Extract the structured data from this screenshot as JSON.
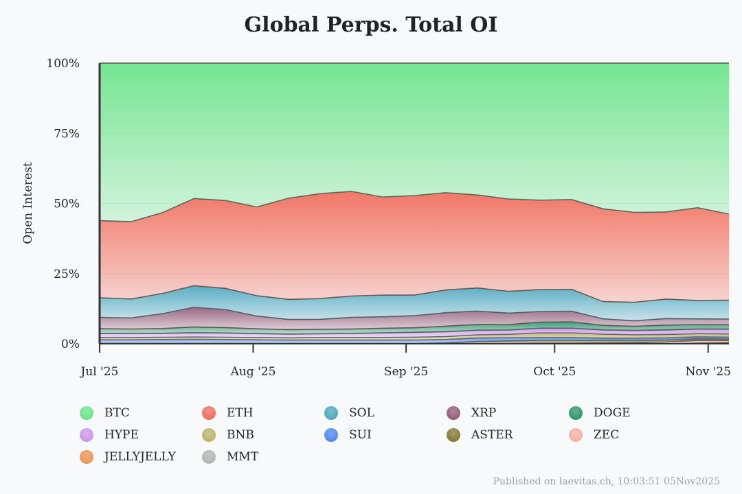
{
  "chart_data": {
    "type": "area",
    "stacked": true,
    "normalized": true,
    "title": "Global Perps. Total OI",
    "ylabel": "Open Interest",
    "xlabel": "",
    "ylim": [
      0,
      100
    ],
    "yticks": [
      "0%",
      "25%",
      "50%",
      "75%",
      "100%"
    ],
    "xticks": [
      "Jul '25",
      "Aug '25",
      "Sep '25",
      "Oct '25",
      "Nov '25"
    ],
    "x": [
      "Jul 1",
      "Jul 8",
      "Jul 15",
      "Jul 22",
      "Jul 29",
      "Aug 5",
      "Aug 12",
      "Aug 19",
      "Aug 26",
      "Sep 2",
      "Sep 9",
      "Sep 16",
      "Sep 23",
      "Sep 30",
      "Oct 7",
      "Oct 10",
      "Oct 11",
      "Oct 18",
      "Oct 25",
      "Nov 1",
      "Nov 5"
    ],
    "series": [
      {
        "name": "BTC",
        "color": "#5ee27f",
        "values": [
          55.4,
          56.0,
          53.1,
          47.8,
          48.6,
          50.9,
          47.8,
          46.0,
          45.1,
          46.7,
          46.3,
          45.0,
          45.6,
          47.4,
          47.6,
          47.4,
          51.5,
          52.8,
          52.6,
          51.1,
          53.8
        ]
      },
      {
        "name": "ETH",
        "color": "#f0604c",
        "values": [
          27.1,
          27.3,
          28.7,
          30.8,
          31.1,
          31.4,
          35.8,
          37.0,
          36.8,
          34.2,
          34.8,
          33.8,
          32.2,
          32.2,
          31.1,
          31.2,
          32.8,
          31.8,
          30.8,
          32.8,
          30.7
        ]
      },
      {
        "name": "SOL",
        "color": "#3da0b8",
        "values": [
          6.9,
          6.7,
          7.2,
          7.6,
          7.5,
          7.2,
          7.1,
          7.3,
          7.5,
          7.6,
          7.2,
          7.9,
          8.0,
          7.6,
          7.6,
          7.6,
          6.1,
          6.6,
          6.9,
          6.5,
          6.7
        ]
      },
      {
        "name": "XRP",
        "color": "#8a4e6c",
        "values": [
          4.0,
          3.9,
          5.3,
          7.0,
          6.4,
          4.5,
          3.6,
          3.5,
          4.1,
          4.0,
          4.2,
          4.7,
          4.6,
          4.0,
          3.7,
          3.7,
          2.3,
          1.9,
          2.3,
          2.0,
          2.0
        ]
      },
      {
        "name": "DOGE",
        "color": "#1e8b5f",
        "values": [
          1.7,
          1.6,
          1.7,
          2.0,
          1.9,
          1.7,
          1.6,
          1.6,
          1.6,
          1.6,
          1.6,
          1.9,
          2.0,
          1.9,
          2.1,
          2.2,
          1.6,
          1.5,
          1.7,
          1.6,
          1.6
        ]
      },
      {
        "name": "HYPE",
        "color": "#c88ce8",
        "values": [
          1.4,
          1.4,
          1.4,
          1.5,
          1.5,
          1.4,
          1.3,
          1.3,
          1.4,
          1.6,
          1.7,
          1.7,
          1.6,
          1.5,
          1.6,
          1.6,
          1.5,
          1.5,
          1.6,
          1.6,
          1.7
        ]
      },
      {
        "name": "BNB",
        "color": "#b4ad5a",
        "values": [
          0.8,
          0.8,
          0.8,
          0.8,
          0.8,
          0.8,
          0.8,
          0.9,
          0.9,
          0.9,
          1.0,
          1.0,
          1.1,
          1.2,
          1.6,
          1.6,
          1.4,
          1.2,
          1.2,
          1.1,
          1.1
        ]
      },
      {
        "name": "SUI",
        "color": "#3d7ef0",
        "values": [
          1.3,
          1.3,
          1.4,
          1.5,
          1.4,
          1.3,
          1.2,
          1.2,
          1.2,
          1.2,
          1.2,
          1.2,
          1.2,
          1.1,
          1.0,
          1.0,
          0.8,
          0.8,
          0.8,
          0.7,
          0.7
        ]
      },
      {
        "name": "ASTER",
        "color": "#7a6d22",
        "values": [
          0,
          0,
          0,
          0,
          0,
          0,
          0,
          0,
          0,
          0,
          0,
          0.2,
          0.7,
          0.9,
          1.0,
          1.0,
          0.9,
          0.8,
          0.7,
          0.6,
          0.5
        ]
      },
      {
        "name": "ZEC",
        "color": "#f5a89a",
        "values": [
          0.1,
          0.1,
          0.1,
          0.1,
          0.1,
          0.1,
          0.1,
          0.1,
          0.1,
          0.1,
          0.1,
          0.1,
          0.1,
          0.1,
          0.2,
          0.2,
          0.3,
          0.4,
          0.6,
          0.9,
          0.7
        ]
      },
      {
        "name": "JELLYJELLY",
        "color": "#ec8a44",
        "values": [
          0,
          0,
          0,
          0,
          0,
          0,
          0,
          0,
          0,
          0,
          0,
          0,
          0,
          0,
          0,
          0,
          0,
          0,
          0,
          0.2,
          0.3
        ]
      },
      {
        "name": "MMT",
        "color": "#a9b1ab",
        "values": [
          0,
          0,
          0,
          0,
          0,
          0,
          0,
          0,
          0,
          0,
          0,
          0,
          0,
          0,
          0,
          0,
          0,
          0,
          0,
          0.1,
          0.2
        ]
      }
    ]
  },
  "footer": "Published on laevitas.ch, 10:03:51 05Nov2025"
}
